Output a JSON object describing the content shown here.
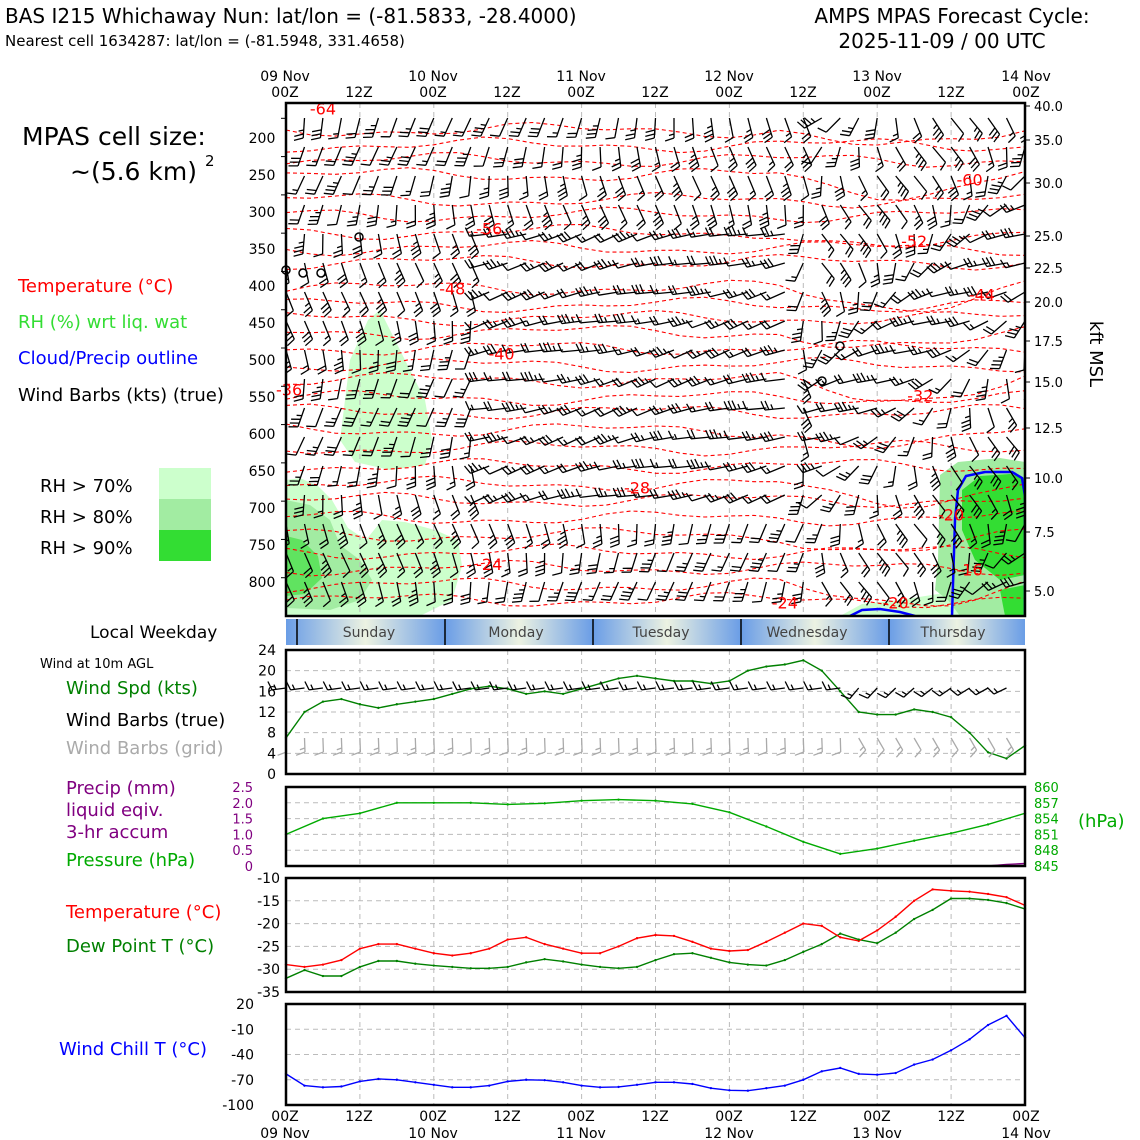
{
  "header": {
    "title": "BAS I215 Whichaway Nun: lat/lon = (-81.5833, -28.4000)",
    "subtitle": "Nearest cell 1634287: lat/lon = (-81.5948, 331.4658)",
    "forecast_line1": "AMPS MPAS Forecast Cycle:",
    "forecast_line2": "2025-11-09 / 00 UTC"
  },
  "cell_size": {
    "line1": "MPAS cell size:",
    "line2": "~(5.6 km)",
    "exponent": "2"
  },
  "legend_upper": {
    "temperature": "Temperature (°C)",
    "rh": "RH (%) wrt liq. wat",
    "cloud": "Cloud/Precip outline",
    "wind": "Wind Barbs (kts) (true)",
    "rh70": "RH > 70%",
    "rh80": "RH > 80%",
    "rh90": "RH > 90%"
  },
  "colors": {
    "temperature": "#ff0000",
    "rh_label": "#33dd33",
    "cloud": "#0000ff",
    "rh70": "#ccffcc",
    "rh80": "#a2eca2",
    "rh90": "#33dd33",
    "pressure": "#00aa00",
    "dewpoint": "#008000",
    "windchill": "#0000ff",
    "precip": "#800080",
    "grid_barbs": "#aaaaaa"
  },
  "time_axis": {
    "top_dates": [
      "09 Nov",
      "10 Nov",
      "11 Nov",
      "12 Nov",
      "13 Nov",
      "14 Nov"
    ],
    "hour_labels": [
      "00Z",
      "12Z",
      "00Z",
      "12Z",
      "00Z",
      "12Z",
      "00Z",
      "12Z",
      "00Z",
      "12Z",
      "00Z"
    ]
  },
  "weekday": {
    "label": "Local Weekday",
    "days": [
      "Sunday",
      "Monday",
      "Tuesday",
      "Wednesday",
      "Thursday"
    ]
  },
  "lower_legends": {
    "wind_title": "Wind at 10m AGL",
    "wind_spd": "Wind Spd (kts)",
    "wind_barbs_true": "Wind Barbs (true)",
    "wind_barbs_grid": "Wind Barbs (grid)",
    "precip1": "Precip (mm)",
    "precip2": "liquid eqiv.",
    "precip3": "3-hr accum",
    "pressure": "Pressure (hPa)",
    "temperature": "Temperature (°C)",
    "dewpoint": "Dew Point T (°C)",
    "windchill": "Wind Chill T (°C)",
    "hpa_unit": "(hPa)",
    "kft_label": "kft MSL"
  },
  "chart_data": [
    {
      "type": "contour",
      "name": "Time-height cross section",
      "x_hours": [
        0,
        120
      ],
      "y_pressure_hpa": [
        850,
        180
      ],
      "pressure_ticks": [
        200,
        250,
        300,
        350,
        400,
        450,
        500,
        550,
        600,
        650,
        700,
        750,
        800
      ],
      "height_ticks_kft": [
        "40.0",
        "35.0",
        "30.0",
        "25.0",
        "22.5",
        "20.0",
        "17.5",
        "15.0",
        "12.5",
        "10.0",
        "7.5",
        "5.0"
      ],
      "temperature_contour_labels": [
        {
          "label": "-64",
          "hour": 6,
          "p": 195
        },
        {
          "label": "-60",
          "hour": 111,
          "p": 288
        },
        {
          "label": "-56",
          "hour": 33,
          "p": 352
        },
        {
          "label": "-52",
          "hour": 102,
          "p": 368
        },
        {
          "label": "-48",
          "hour": 27,
          "p": 430
        },
        {
          "label": "-44",
          "hour": 113,
          "p": 438
        },
        {
          "label": "-40",
          "hour": 35,
          "p": 515
        },
        {
          "label": "-36",
          "hour": 0.5,
          "p": 562
        },
        {
          "label": "-32",
          "hour": 103,
          "p": 570
        },
        {
          "label": "-28",
          "hour": 57,
          "p": 690
        },
        {
          "label": "-24",
          "hour": 33,
          "p": 790
        },
        {
          "label": "-24",
          "hour": 81,
          "p": 840
        },
        {
          "label": "-20",
          "hour": 108,
          "p": 725
        },
        {
          "label": "-20",
          "hour": 99,
          "p": 840
        },
        {
          "label": "-16",
          "hour": 111,
          "p": 797
        }
      ]
    },
    {
      "type": "line",
      "name": "Wind at 10m AGL",
      "xlabel": "hours since 2025-11-09 00Z",
      "ylabel": "Wind Spd (kts)",
      "ylim": [
        0,
        24
      ],
      "yticks": [
        "0",
        "4",
        "8",
        "12",
        "16",
        "20",
        "24"
      ],
      "x": [
        0,
        3,
        6,
        9,
        12,
        15,
        18,
        21,
        24,
        27,
        30,
        33,
        36,
        39,
        42,
        45,
        48,
        51,
        54,
        57,
        60,
        63,
        66,
        69,
        72,
        75,
        78,
        81,
        84,
        87,
        90,
        93,
        96,
        99,
        102,
        105,
        108,
        111,
        114,
        117,
        120
      ],
      "values": [
        7,
        12,
        14,
        14.5,
        13.5,
        12.8,
        13.5,
        14,
        14.5,
        15.5,
        16.5,
        17,
        16.5,
        15.5,
        16,
        15.5,
        16.5,
        17.5,
        18.5,
        19,
        18.5,
        18,
        18,
        17.5,
        18,
        20,
        20.8,
        21.2,
        22,
        20,
        16,
        12,
        11.5,
        11.5,
        12.5,
        12,
        11,
        8,
        4.2,
        3,
        5.5
      ]
    },
    {
      "type": "line",
      "name": "Precip and Pressure",
      "series": [
        {
          "name": "Precip (mm)",
          "ylim": [
            0,
            2.5
          ],
          "yticks": [
            "0",
            "0.5",
            "1.0",
            "1.5",
            "2.0",
            "2.5"
          ],
          "x": [
            0,
            114,
            117,
            120
          ],
          "values": [
            0,
            0,
            0.05,
            0.08
          ]
        },
        {
          "name": "Pressure (hPa)",
          "ylim": [
            845,
            860
          ],
          "yticks": [
            "845",
            "848",
            "851",
            "854",
            "857",
            "860"
          ],
          "x": [
            0,
            6,
            12,
            18,
            24,
            30,
            36,
            42,
            48,
            54,
            60,
            66,
            72,
            78,
            84,
            90,
            96,
            102,
            108,
            114,
            120
          ],
          "values": [
            851,
            854,
            855,
            857,
            857,
            857,
            856.7,
            856.9,
            857.4,
            857.6,
            857.4,
            856.8,
            855.2,
            852.5,
            849.6,
            847.3,
            848.3,
            849.8,
            851.2,
            852.9,
            855
          ]
        }
      ]
    },
    {
      "type": "line",
      "name": "Temperature and Dew Point",
      "ylim": [
        -35,
        -10
      ],
      "yticks": [
        "-10",
        "-15",
        "-20",
        "-25",
        "-30",
        "-35"
      ],
      "x": [
        0,
        3,
        6,
        9,
        12,
        15,
        18,
        21,
        24,
        27,
        30,
        33,
        36,
        39,
        42,
        45,
        48,
        51,
        54,
        57,
        60,
        63,
        66,
        69,
        72,
        75,
        78,
        81,
        84,
        87,
        90,
        93,
        96,
        99,
        102,
        105,
        108,
        111,
        114,
        117,
        120
      ],
      "series": [
        {
          "name": "Temperature (°C)",
          "values": [
            -29,
            -29.5,
            -29,
            -28,
            -25.5,
            -24.5,
            -24.5,
            -25.5,
            -26.5,
            -27,
            -26.5,
            -25.5,
            -23.5,
            -23,
            -24.5,
            -25.5,
            -26.5,
            -26.5,
            -25,
            -23.2,
            -22.5,
            -22.7,
            -24,
            -25.5,
            -26,
            -25.8,
            -24,
            -22,
            -20,
            -20.5,
            -23,
            -23.8,
            -21.5,
            -18.5,
            -15,
            -12.5,
            -12.8,
            -13,
            -13.5,
            -14.2,
            -16
          ]
        },
        {
          "name": "Dew Point T (°C)",
          "values": [
            -32,
            -30.2,
            -31.5,
            -31.5,
            -29.5,
            -28.2,
            -28.2,
            -28.8,
            -29.2,
            -29.5,
            -29.8,
            -29.8,
            -29.5,
            -28.5,
            -27.8,
            -28.3,
            -29,
            -29.5,
            -29.8,
            -29.5,
            -28,
            -26.7,
            -26.5,
            -27.5,
            -28.5,
            -29,
            -29.2,
            -28,
            -26.2,
            -24.5,
            -22.2,
            -23.5,
            -24.3,
            -22,
            -19,
            -17,
            -14.5,
            -14.5,
            -14.8,
            -15.5,
            -16.8
          ]
        }
      ]
    },
    {
      "type": "line",
      "name": "Wind Chill T (°C)",
      "ylim": [
        -100,
        20
      ],
      "yticks": [
        "20",
        "-10",
        "-40",
        "-70",
        "-100"
      ],
      "x": [
        0,
        3,
        6,
        9,
        12,
        15,
        18,
        21,
        24,
        27,
        30,
        33,
        36,
        39,
        42,
        45,
        48,
        51,
        54,
        57,
        60,
        63,
        66,
        69,
        72,
        75,
        78,
        81,
        84,
        87,
        90,
        93,
        96,
        99,
        102,
        105,
        108,
        111,
        114,
        117,
        120
      ],
      "values": [
        -63,
        -77,
        -79,
        -78,
        -72,
        -69,
        -70,
        -73,
        -76,
        -79,
        -79,
        -77,
        -72,
        -70,
        -70.5,
        -73,
        -77,
        -79,
        -78.5,
        -76,
        -73,
        -73,
        -75,
        -80,
        -82.5,
        -83,
        -80,
        -77,
        -70,
        -60,
        -56,
        -63,
        -64,
        -62,
        -52,
        -46,
        -35,
        -22,
        -5,
        6,
        -20
      ]
    }
  ]
}
